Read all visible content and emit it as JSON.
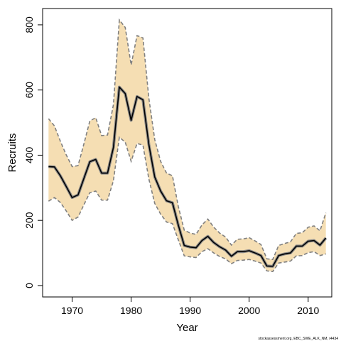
{
  "chart_data": {
    "type": "area",
    "xlabel": "Year",
    "ylabel": "Recruits",
    "xlim": [
      1965,
      2014
    ],
    "ylim": [
      -35,
      850
    ],
    "x_ticks": [
      1970,
      1980,
      1990,
      2000,
      2010
    ],
    "y_ticks": [
      0,
      200,
      400,
      600,
      800
    ],
    "credit": "stockassessment.org, EBC_SWE_ALK_NM, r4434",
    "colors": {
      "band": "#f5deb3",
      "band_edge": "#808080",
      "line": "#000000",
      "frame": "#000000"
    },
    "x": [
      1966,
      1967,
      1968,
      1969,
      1970,
      1971,
      1972,
      1973,
      1974,
      1975,
      1976,
      1977,
      1978,
      1979,
      1980,
      1981,
      1982,
      1983,
      1984,
      1985,
      1986,
      1987,
      1988,
      1989,
      1990,
      1991,
      1992,
      1993,
      1994,
      1995,
      1996,
      1997,
      1998,
      1999,
      2000,
      2001,
      2002,
      2003,
      2004,
      2005,
      2006,
      2007,
      2008,
      2009,
      2010,
      2011,
      2012,
      2013
    ],
    "series": [
      {
        "name": "estimate",
        "values": [
          365,
          364,
          337,
          304,
          270,
          278,
          329,
          380,
          387,
          345,
          345,
          424,
          609,
          589,
          507,
          580,
          570,
          433,
          333,
          290,
          260,
          254,
          185,
          123,
          118,
          116,
          138,
          151,
          132,
          119,
          109,
          90,
          104,
          104,
          107,
          100,
          92,
          60,
          59,
          92,
          97,
          100,
          121,
          121,
          136,
          138,
          124,
          146
        ]
      },
      {
        "name": "upper",
        "values": [
          512,
          490,
          443,
          401,
          365,
          368,
          435,
          505,
          515,
          460,
          462,
          555,
          815,
          792,
          677,
          767,
          760,
          575,
          448,
          381,
          345,
          337,
          242,
          170,
          161,
          157,
          186,
          204,
          179,
          161,
          149,
          124,
          142,
          143,
          147,
          137,
          126,
          82,
          80,
          123,
          129,
          134,
          160,
          162,
          179,
          183,
          168,
          223
        ]
      },
      {
        "name": "lower",
        "values": [
          259,
          270,
          255,
          229,
          200,
          210,
          248,
          285,
          290,
          262,
          262,
          322,
          455,
          440,
          381,
          436,
          431,
          327,
          252,
          219,
          195,
          190,
          140,
          91,
          88,
          86,
          104,
          113,
          100,
          89,
          82,
          67,
          77,
          78,
          80,
          75,
          69,
          45,
          43,
          69,
          72,
          75,
          91,
          92,
          101,
          104,
          92,
          97
        ]
      }
    ]
  }
}
